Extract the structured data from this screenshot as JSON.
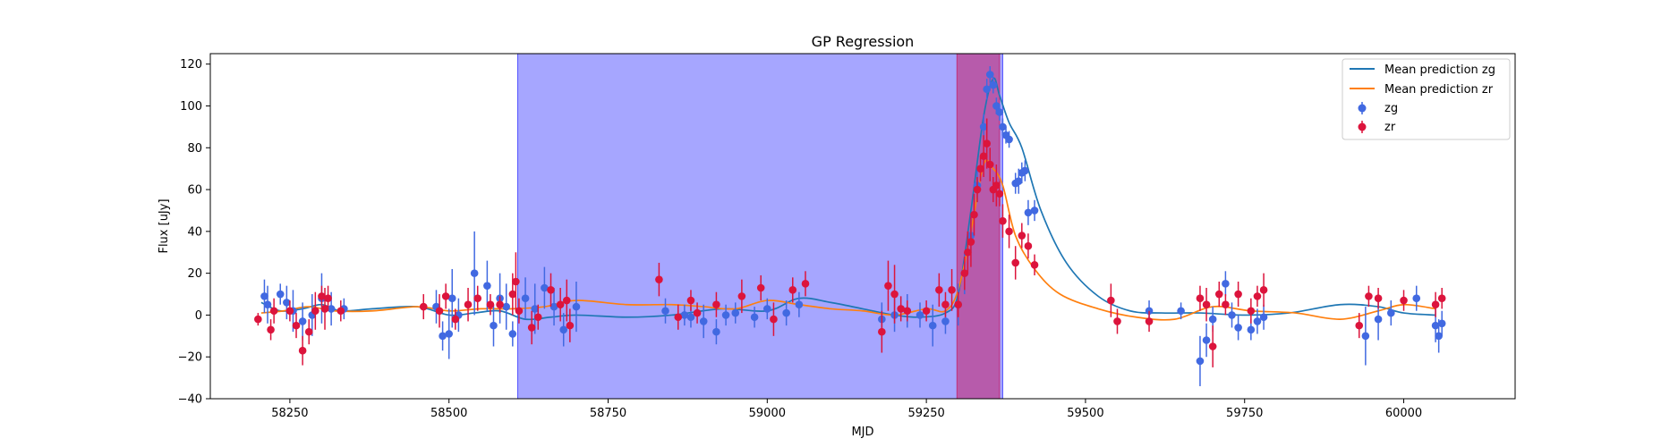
{
  "chart_data": {
    "type": "scatter",
    "title": "GP Regression",
    "xlabel": "MJD",
    "ylabel": "Flux [uJy]",
    "xlim": [
      58125,
      60175
    ],
    "ylim": [
      -40,
      125
    ],
    "x_ticks": [
      58250,
      58500,
      58750,
      59000,
      59250,
      59500,
      59750,
      60000
    ],
    "y_ticks": [
      -40,
      -20,
      0,
      20,
      40,
      60,
      80,
      100,
      120
    ],
    "grid": false,
    "legend_placement": "top-right",
    "shaded_regions": [
      {
        "x0": 58608,
        "x1": 59370,
        "color": "#0000ff",
        "opacity": 0.35
      },
      {
        "x0": 59298,
        "x1": 59365,
        "color": "#cc0044",
        "opacity": 0.45
      }
    ],
    "mean_predictions": [
      {
        "name": "Mean prediction zg",
        "color": "#1f77b4",
        "x": [
          58205,
          58235,
          58270,
          58300,
          58330,
          58380,
          58450,
          58500,
          58540,
          58580,
          58620,
          58660,
          58700,
          58780,
          58850,
          58930,
          59000,
          59050,
          59100,
          59150,
          59200,
          59240,
          59280,
          59300,
          59320,
          59340,
          59355,
          59365,
          59380,
          59400,
          59430,
          59470,
          59520,
          59570,
          59620,
          59680,
          59750,
          59820,
          59900,
          59960,
          60000,
          60050
        ],
        "y": [
          6,
          2,
          3,
          5,
          2,
          3,
          4,
          0,
          1,
          2,
          -2,
          -1,
          0,
          -1,
          0,
          3,
          2,
          8,
          6,
          3,
          0,
          -1,
          1,
          10,
          50,
          95,
          113,
          105,
          92,
          80,
          50,
          25,
          9,
          2,
          1,
          1,
          0,
          1,
          5,
          4,
          1,
          0
        ]
      },
      {
        "name": "Mean prediction zr",
        "color": "#ff7f0e",
        "x": [
          58205,
          58240,
          58280,
          58320,
          58380,
          58450,
          58500,
          58550,
          58600,
          58650,
          58700,
          58780,
          58850,
          58900,
          58950,
          59000,
          59050,
          59100,
          59150,
          59200,
          59250,
          59280,
          59300,
          59320,
          59340,
          59355,
          59370,
          59390,
          59420,
          59460,
          59520,
          59580,
          59640,
          59700,
          59760,
          59830,
          59900,
          59960,
          60000,
          60050
        ],
        "y": [
          1,
          2,
          4,
          2,
          2,
          4,
          2,
          3,
          3,
          4,
          7,
          5,
          5,
          4,
          3,
          7,
          5,
          3,
          2,
          0,
          3,
          2,
          12,
          40,
          72,
          70,
          62,
          38,
          22,
          10,
          3,
          -1,
          -2,
          4,
          2,
          1,
          -2,
          2,
          5,
          3
        ]
      }
    ],
    "series": [
      {
        "name": "zg",
        "color": "#4169e1",
        "x": [
          58210,
          58215,
          58235,
          58245,
          58255,
          58270,
          58285,
          58300,
          58315,
          58335,
          58480,
          58490,
          58500,
          58505,
          58515,
          58540,
          58560,
          58570,
          58580,
          58590,
          58600,
          58620,
          58635,
          58650,
          58665,
          58680,
          58700,
          58840,
          58870,
          58880,
          58900,
          58920,
          58935,
          58950,
          58980,
          59000,
          59030,
          59050,
          59180,
          59200,
          59220,
          59240,
          59260,
          59280,
          59300,
          59310,
          59320,
          59330,
          59340,
          59345,
          59350,
          59355,
          59360,
          59365,
          59370,
          59375,
          59380,
          59390,
          59395,
          59400,
          59405,
          59410,
          59420,
          59600,
          59650,
          59680,
          59690,
          59700,
          59720,
          59730,
          59740,
          59760,
          59770,
          59780,
          59940,
          59960,
          59980,
          60020,
          60050,
          60055,
          60060
        ],
        "y": [
          9,
          5,
          10,
          6,
          2,
          -3,
          0,
          8,
          3,
          3,
          4,
          -10,
          -9,
          8,
          0,
          20,
          14,
          -5,
          8,
          4,
          -9,
          8,
          3,
          13,
          4,
          -7,
          4,
          2,
          0,
          -1,
          -3,
          -8,
          0,
          1,
          -1,
          3,
          1,
          5,
          -2,
          0,
          2,
          0,
          -5,
          -3,
          5,
          20,
          38,
          62,
          90,
          108,
          115,
          110,
          100,
          97,
          90,
          86,
          84,
          63,
          64,
          68,
          69,
          49,
          50,
          2,
          2,
          -22,
          -12,
          -2,
          15,
          0,
          -6,
          -7,
          -3,
          -1,
          -10,
          -2,
          1,
          8,
          -5,
          -10,
          -4
        ],
        "err": [
          8,
          9,
          5,
          8,
          10,
          9,
          10,
          12,
          8,
          5,
          8,
          7,
          12,
          14,
          8,
          20,
          12,
          10,
          12,
          11,
          6,
          10,
          12,
          10,
          9,
          8,
          12,
          6,
          5,
          5,
          8,
          6,
          5,
          5,
          5,
          5,
          6,
          6,
          8,
          8,
          8,
          6,
          10,
          6,
          10,
          10,
          8,
          8,
          6,
          5,
          4,
          4,
          4,
          4,
          4,
          4,
          4,
          5,
          6,
          5,
          5,
          6,
          5,
          5,
          4,
          12,
          8,
          6,
          6,
          6,
          6,
          5,
          6,
          6,
          14,
          10,
          6,
          6,
          8,
          8,
          6
        ]
      },
      {
        "name": "zr",
        "color": "#dc143c",
        "x": [
          58200,
          58220,
          58225,
          58250,
          58260,
          58270,
          58280,
          58290,
          58300,
          58305,
          58310,
          58330,
          58460,
          58485,
          58495,
          58510,
          58530,
          58545,
          58565,
          58580,
          58600,
          58605,
          58610,
          58630,
          58640,
          58660,
          58675,
          58685,
          58690,
          58830,
          58860,
          58880,
          58890,
          58920,
          58960,
          58990,
          59010,
          59040,
          59060,
          59180,
          59190,
          59200,
          59210,
          59220,
          59250,
          59270,
          59280,
          59290,
          59300,
          59310,
          59315,
          59320,
          59325,
          59330,
          59335,
          59340,
          59345,
          59350,
          59355,
          59360,
          59365,
          59370,
          59380,
          59390,
          59400,
          59410,
          59420,
          59540,
          59550,
          59600,
          59680,
          59690,
          59700,
          59710,
          59720,
          59740,
          59760,
          59770,
          59780,
          59930,
          59945,
          59960,
          60000,
          60050,
          60060
        ],
        "y": [
          -2,
          -7,
          2,
          2,
          -5,
          -17,
          -8,
          2,
          9,
          3,
          8,
          2,
          4,
          2,
          9,
          -2,
          5,
          8,
          5,
          5,
          10,
          16,
          2,
          -6,
          -1,
          12,
          5,
          7,
          -5,
          17,
          -1,
          7,
          1,
          5,
          9,
          13,
          -2,
          12,
          15,
          -8,
          14,
          10,
          3,
          2,
          2,
          12,
          5,
          12,
          5,
          20,
          30,
          35,
          48,
          60,
          70,
          76,
          82,
          72,
          60,
          62,
          58,
          45,
          40,
          25,
          38,
          33,
          24,
          7,
          -3,
          -3,
          8,
          5,
          -15,
          10,
          5,
          10,
          2,
          9,
          12,
          -5,
          9,
          8,
          7,
          5,
          8
        ],
        "err": [
          3,
          5,
          6,
          5,
          6,
          7,
          6,
          9,
          5,
          10,
          6,
          5,
          6,
          8,
          6,
          5,
          8,
          6,
          5,
          4,
          10,
          14,
          6,
          8,
          6,
          8,
          8,
          10,
          8,
          8,
          6,
          5,
          5,
          6,
          8,
          6,
          8,
          6,
          6,
          10,
          12,
          14,
          6,
          5,
          5,
          8,
          6,
          10,
          6,
          8,
          10,
          12,
          10,
          6,
          6,
          10,
          12,
          8,
          6,
          10,
          6,
          8,
          8,
          8,
          6,
          6,
          5,
          8,
          6,
          5,
          6,
          8,
          10,
          6,
          5,
          6,
          6,
          5,
          8,
          6,
          5,
          5,
          5,
          6,
          5
        ]
      }
    ],
    "legend": [
      "Mean prediction zg",
      "Mean prediction zr",
      "zg",
      "zr"
    ]
  }
}
